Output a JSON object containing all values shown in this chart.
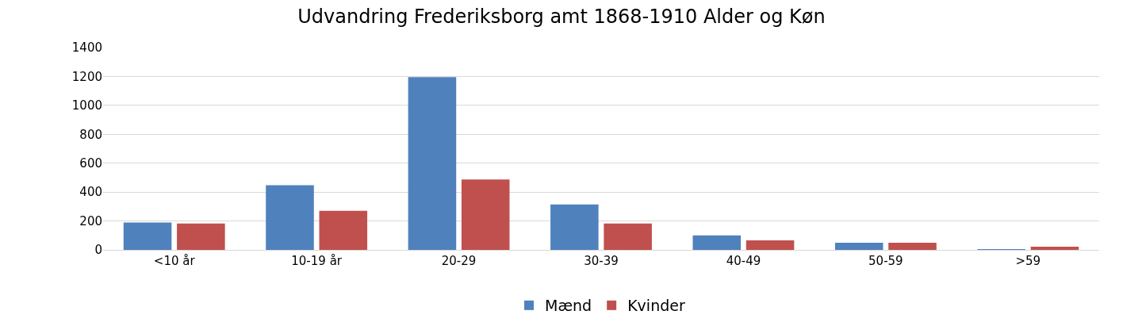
{
  "chart_data": {
    "type": "bar",
    "title": "Udvandring Frederiksborg amt 1868-1910 Alder og Køn",
    "categories": [
      "<10 år",
      "10-19 år",
      "20-29",
      "30-39",
      "40-49",
      "50-59",
      ">59"
    ],
    "series": [
      {
        "name": "Mænd",
        "color": "#4f81bd",
        "values": [
          190,
          448,
          1195,
          315,
          100,
          50,
          5
        ]
      },
      {
        "name": "Kvinder",
        "color": "#c0504d",
        "values": [
          183,
          271,
          487,
          183,
          66,
          50,
          22
        ]
      }
    ],
    "ylim": [
      0,
      1400
    ],
    "yticks": [
      0,
      200,
      400,
      600,
      800,
      1000,
      1200,
      1400
    ],
    "grid": "y",
    "legend": "bottom"
  }
}
